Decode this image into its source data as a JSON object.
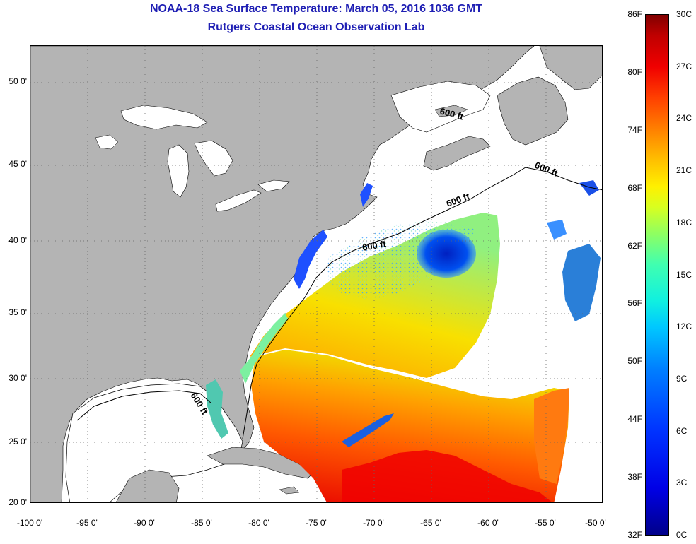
{
  "title": {
    "line1": "NOAA-18 Sea Surface Temperature:  March 05, 2016 1036 GMT",
    "line2": "Rutgers Coastal Ocean Observation Lab"
  },
  "map": {
    "lat_ticks": [
      "50 0'",
      "45 0'",
      "40 0'",
      "35 0'",
      "30 0'",
      "25 0'",
      "20 0'"
    ],
    "lon_ticks": [
      "-100 0'",
      "-95 0'",
      "-90 0'",
      "-85 0'",
      "-80 0'",
      "-75 0'",
      "-70 0'",
      "-65 0'",
      "-60 0'",
      "-55 0'",
      "-50 0'"
    ],
    "isobath_labels": [
      "600 ft",
      "600 ft",
      "600 ft",
      "600 ft",
      "600 ft"
    ],
    "land_color": "#b4b4b4",
    "no_data_color": "#ffffff",
    "grid": true
  },
  "colorbar": {
    "fahrenheit": [
      "86F",
      "80F",
      "74F",
      "68F",
      "62F",
      "56F",
      "50F",
      "44F",
      "38F",
      "32F"
    ],
    "celsius": [
      "30C",
      "27C",
      "24C",
      "21C",
      "18C",
      "15C",
      "12C",
      "9C",
      "6C",
      "3C",
      "0C"
    ]
  }
}
